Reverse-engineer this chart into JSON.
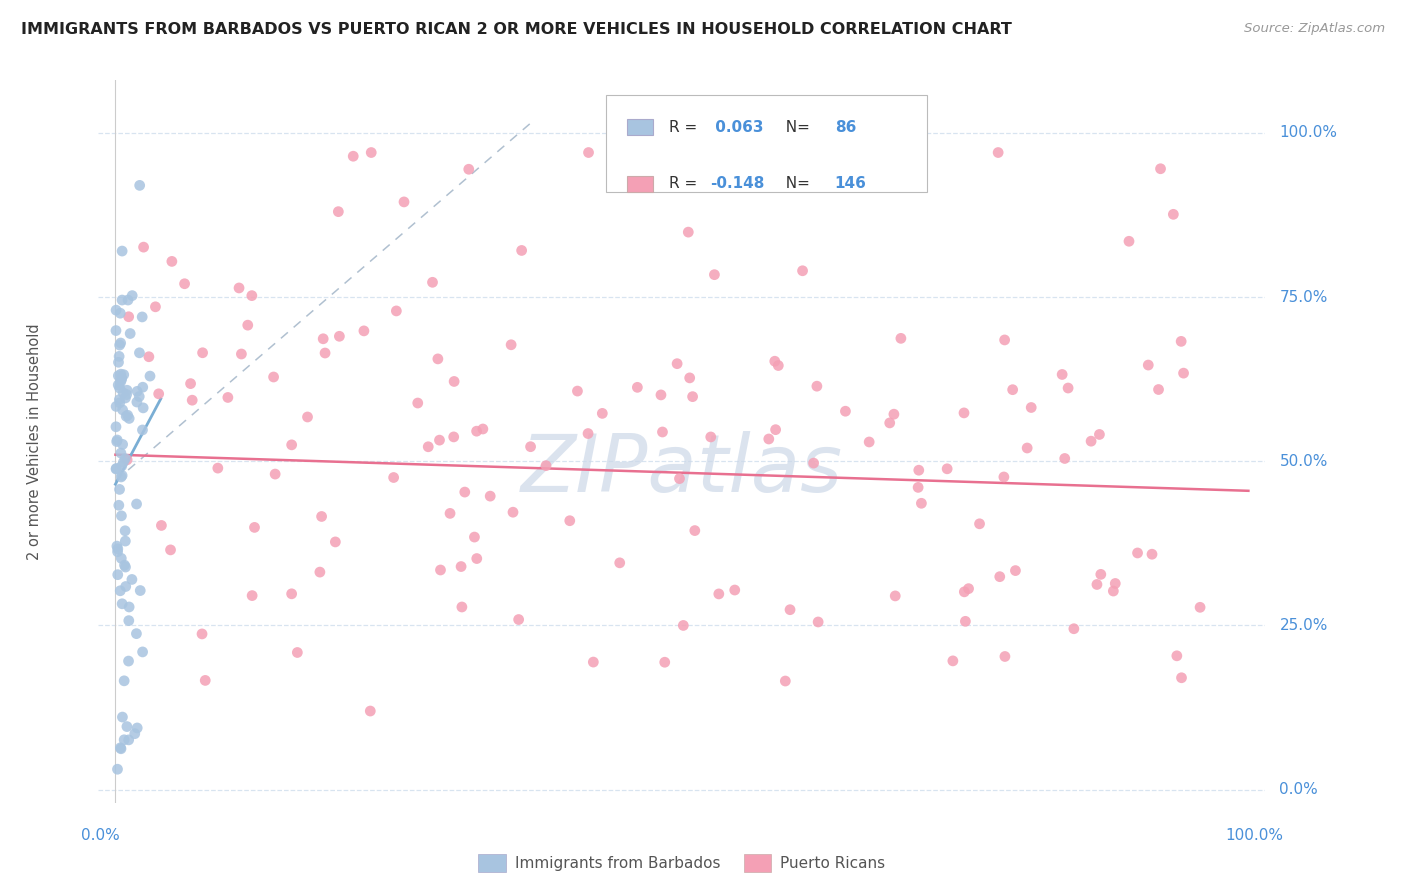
{
  "title": "IMMIGRANTS FROM BARBADOS VS PUERTO RICAN 2 OR MORE VEHICLES IN HOUSEHOLD CORRELATION CHART",
  "source": "Source: ZipAtlas.com",
  "ylabel_label": "2 or more Vehicles in Household",
  "legend_label1": "Immigrants from Barbados",
  "legend_label2": "Puerto Ricans",
  "R1": 0.063,
  "N1": 86,
  "R2": -0.148,
  "N2": 146,
  "color_blue": "#a8c4e0",
  "color_pink": "#f4a0b5",
  "color_blue_text": "#4a90d9",
  "trendline_blue_color": "#7aaed4",
  "trendline_pink_color": "#e87090",
  "trendline_gray_color": "#b0c0d0",
  "ytick_labels": [
    "0.0%",
    "25.0%",
    "50.0%",
    "75.0%",
    "100.0%"
  ],
  "ytick_values": [
    0.0,
    0.25,
    0.5,
    0.75,
    1.0
  ],
  "xtick_labels": [
    "0.0%",
    "100.0%"
  ],
  "xtick_values": [
    0.0,
    1.0
  ],
  "watermark_color": "#ccd8e8",
  "grid_color": "#d8e4f0",
  "background_color": "#ffffff"
}
